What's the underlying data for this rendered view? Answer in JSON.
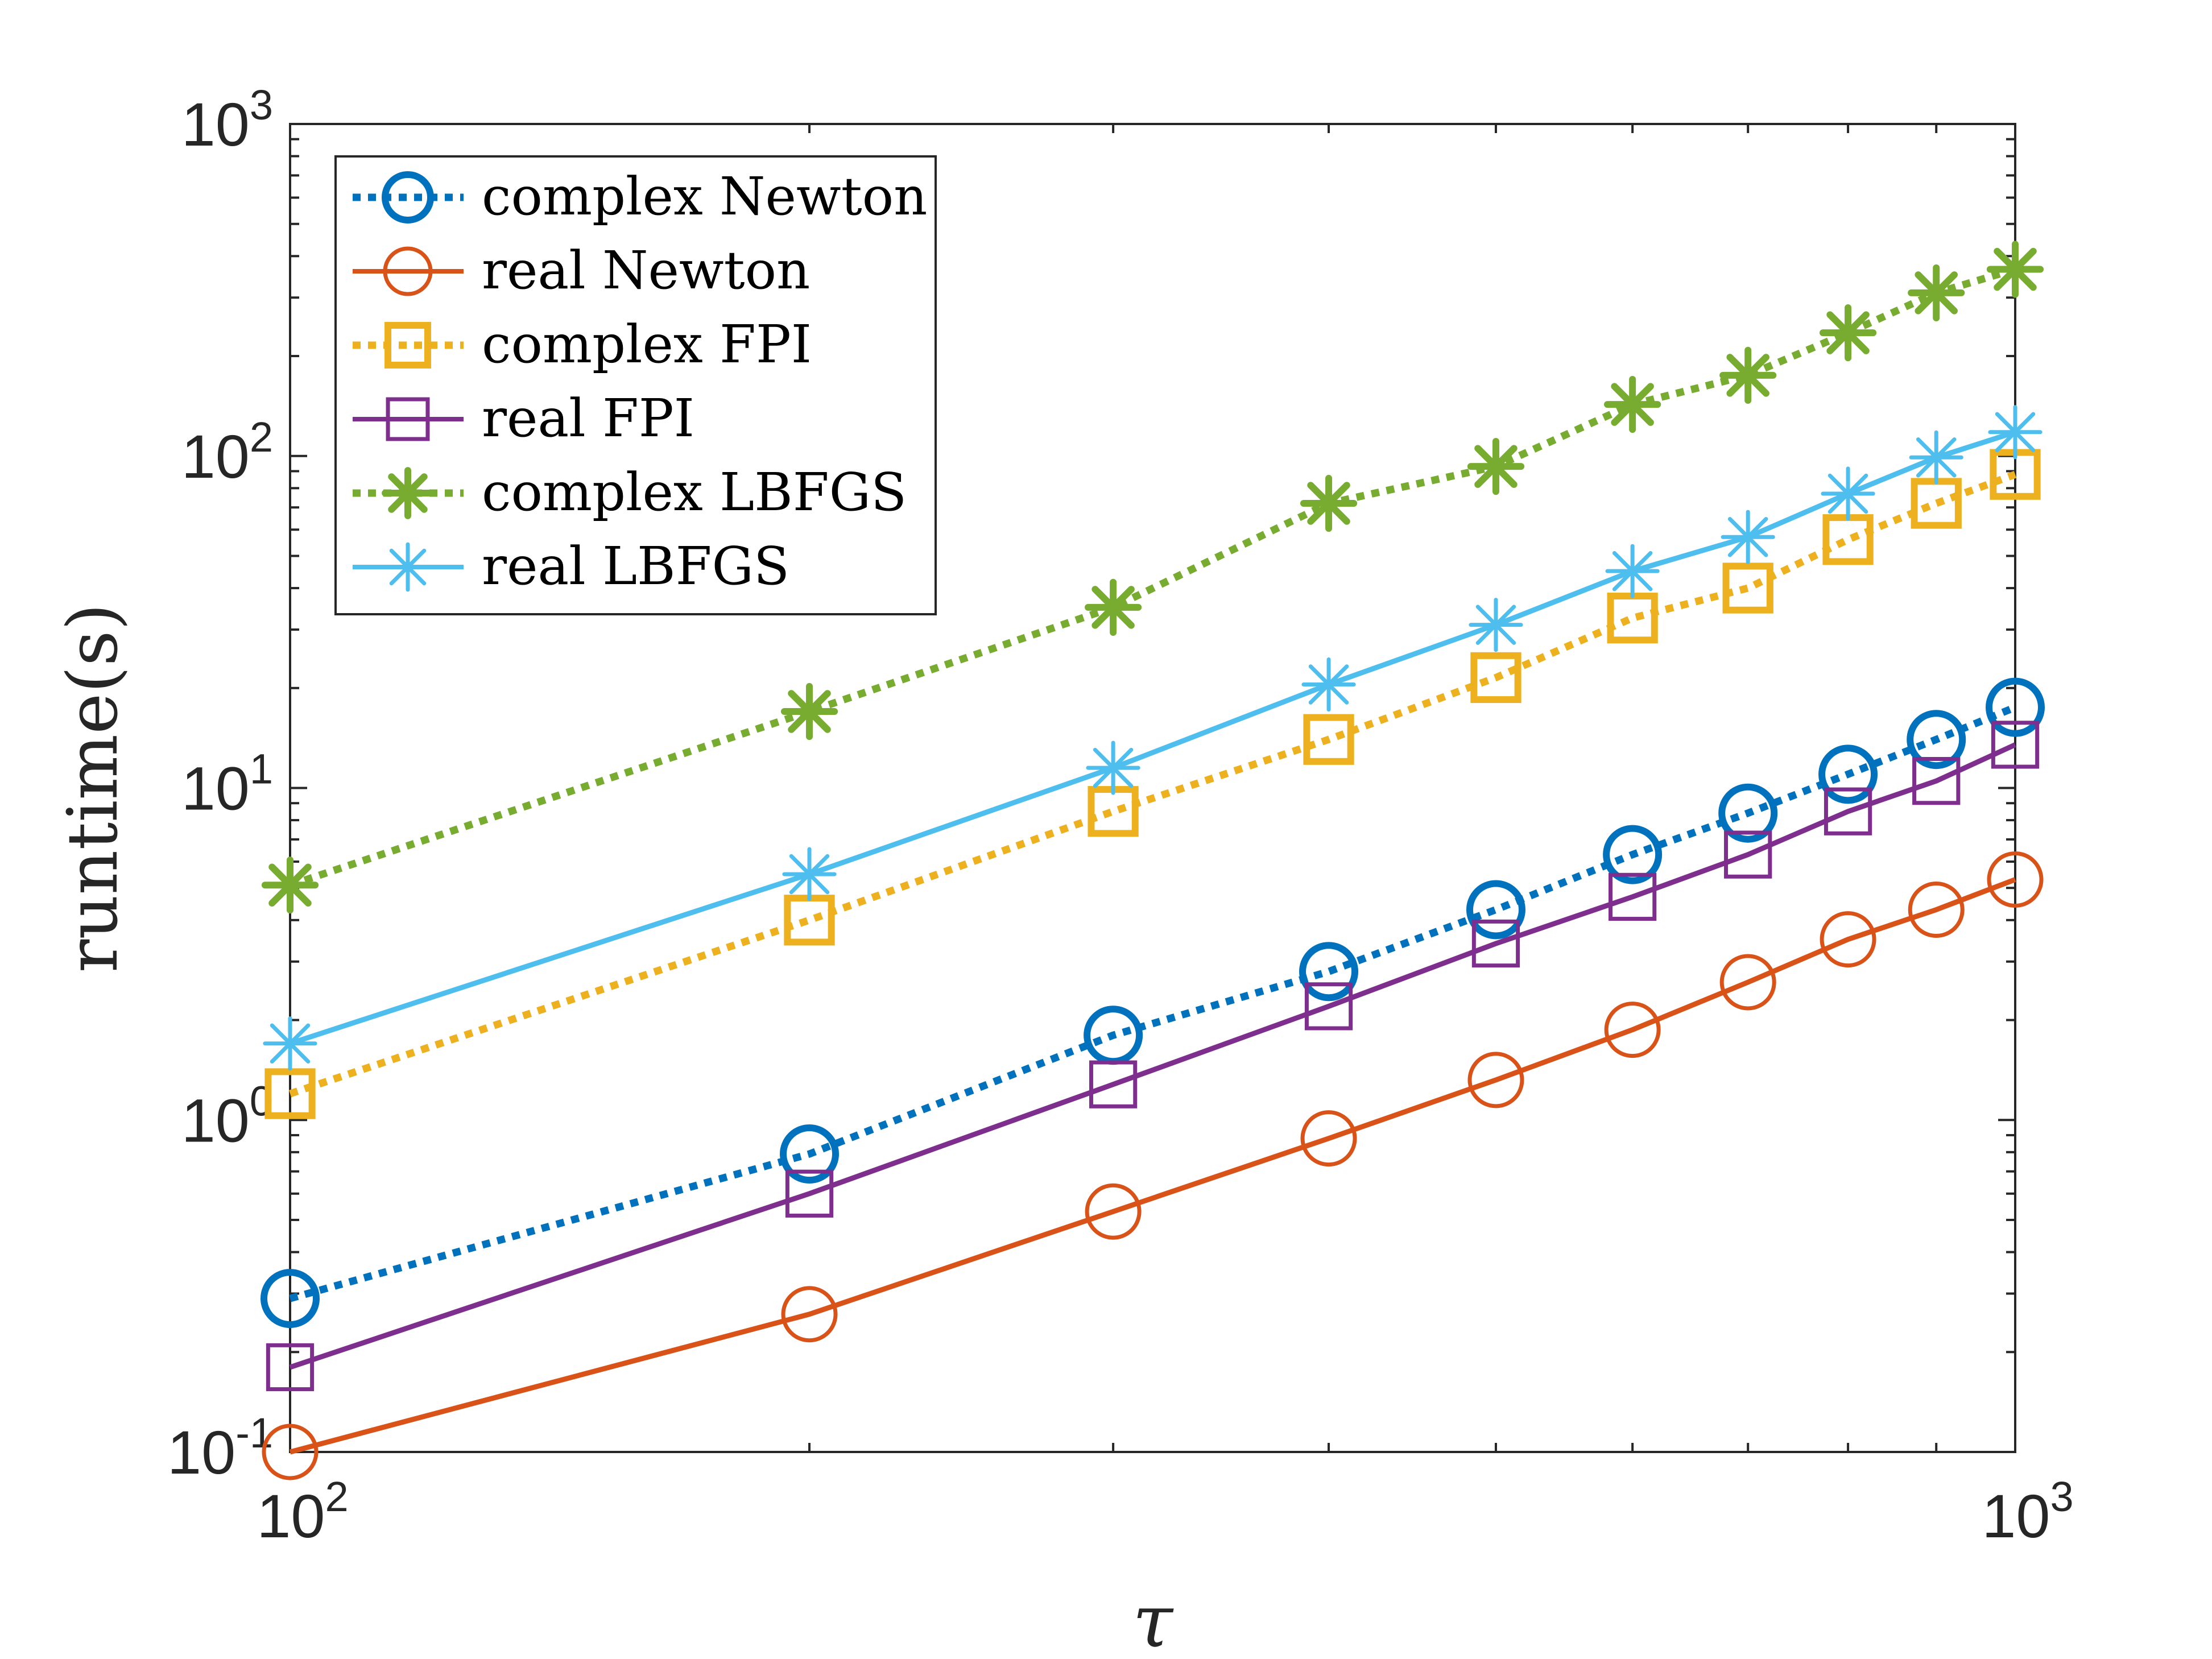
{
  "chart_data": {
    "type": "line",
    "title": "",
    "xlabel": "τ",
    "ylabel": "runtime(s)",
    "xscale": "log",
    "yscale": "log",
    "xlim": [
      100,
      1000
    ],
    "ylim": [
      0.1,
      1000
    ],
    "grid": false,
    "legend_position": "top-left",
    "x": [
      100,
      200,
      300,
      400,
      500,
      600,
      700,
      800,
      900,
      1000
    ],
    "x_ticks": [
      {
        "value": 100,
        "base": "10",
        "exp": "2"
      },
      {
        "value": 1000,
        "base": "10",
        "exp": "3"
      }
    ],
    "y_ticks": [
      {
        "value": 0.1,
        "base": "10",
        "exp": "-1"
      },
      {
        "value": 1,
        "base": "10",
        "exp": "0"
      },
      {
        "value": 10,
        "base": "10",
        "exp": "1"
      },
      {
        "value": 100,
        "base": "10",
        "exp": "2"
      },
      {
        "value": 1000,
        "base": "10",
        "exp": "3"
      }
    ],
    "series": [
      {
        "name": "complex Newton",
        "color": "#0072BD",
        "style": "dotted",
        "marker": "circle",
        "bold": true,
        "values": [
          0.29,
          0.79,
          1.8,
          2.8,
          4.3,
          6.3,
          8.4,
          11.0,
          14.0,
          17.5
        ]
      },
      {
        "name": "real Newton",
        "color": "#D95319",
        "style": "solid",
        "marker": "circle",
        "bold": false,
        "values": [
          0.1,
          0.26,
          0.53,
          0.88,
          1.32,
          1.87,
          2.6,
          3.5,
          4.3,
          5.3
        ]
      },
      {
        "name": "complex FPI",
        "color": "#EDB120",
        "style": "dotted",
        "marker": "square",
        "bold": true,
        "values": [
          1.2,
          4.0,
          8.5,
          14.0,
          21.5,
          32.5,
          40.0,
          56.0,
          72.0,
          88.0
        ]
      },
      {
        "name": "real FPI",
        "color": "#7E2F8E",
        "style": "solid",
        "marker": "square",
        "bold": false,
        "values": [
          0.18,
          0.6,
          1.28,
          2.2,
          3.4,
          4.7,
          6.3,
          8.5,
          10.5,
          13.5
        ]
      },
      {
        "name": "complex LBFGS",
        "color": "#77AC30",
        "style": "dotted",
        "marker": "asterisk",
        "bold": true,
        "values": [
          5.1,
          17.0,
          35.0,
          72.0,
          93.0,
          143.0,
          175.0,
          235.0,
          310.0,
          365.0
        ]
      },
      {
        "name": "real LBFGS",
        "color": "#4DBEEE",
        "style": "solid",
        "marker": "asterisk",
        "bold": false,
        "values": [
          1.7,
          5.5,
          11.5,
          20.5,
          31.0,
          45.0,
          57.0,
          77.0,
          99.0,
          118.0
        ]
      }
    ]
  }
}
